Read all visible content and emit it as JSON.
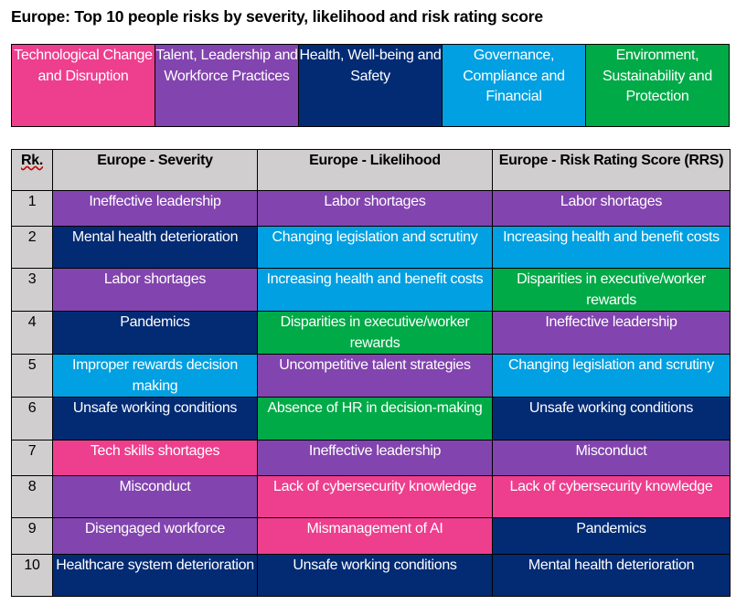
{
  "title": "Europe: Top 10 people risks by severity, likelihood and risk rating score",
  "colors": {
    "tech": "#ee3e8e",
    "talent": "#8244ae",
    "health": "#022b74",
    "gov": "#00a0e2",
    "env": "#00aa47"
  },
  "legend": [
    {
      "key": "tech",
      "label": "Technological Change and Disruption"
    },
    {
      "key": "talent",
      "label": "Talent, Leadership and Workforce Practices"
    },
    {
      "key": "health",
      "label": "Health, Well-being and Safety"
    },
    {
      "key": "gov",
      "label": "Governance, Compliance and Financial"
    },
    {
      "key": "env",
      "label": "Environment, Sustainability and Protection"
    }
  ],
  "headers": [
    "Rk.",
    "Europe - Severity",
    "Europe - Likelihood",
    "Europe - Risk Rating Score (RRS)"
  ],
  "rows": [
    {
      "rank": "1",
      "cells": [
        [
          "Ineffective leadership",
          "talent"
        ],
        [
          "Labor shortages",
          "talent"
        ],
        [
          "Labor shortages",
          "talent"
        ]
      ]
    },
    {
      "rank": "2",
      "cells": [
        [
          "Mental health deterioration",
          "health"
        ],
        [
          "Changing legislation and scrutiny",
          "gov"
        ],
        [
          "Increasing health and benefit costs",
          "gov"
        ]
      ]
    },
    {
      "rank": "3",
      "cells": [
        [
          "Labor shortages",
          "talent"
        ],
        [
          "Increasing health and benefit costs",
          "gov"
        ],
        [
          "Disparities in executive/worker rewards",
          "env"
        ]
      ]
    },
    {
      "rank": "4",
      "cells": [
        [
          "Pandemics",
          "health"
        ],
        [
          "Disparities in executive/worker rewards",
          "env"
        ],
        [
          "Ineffective leadership",
          "talent"
        ]
      ]
    },
    {
      "rank": "5",
      "cells": [
        [
          "Improper rewards decision making",
          "gov"
        ],
        [
          "Uncompetitive talent strategies",
          "talent"
        ],
        [
          "Changing legislation and scrutiny",
          "gov"
        ]
      ]
    },
    {
      "rank": "6",
      "cells": [
        [
          "Unsafe working conditions",
          "health"
        ],
        [
          "Absence of HR in decision-making",
          "env"
        ],
        [
          "Unsafe working conditions",
          "health"
        ]
      ]
    },
    {
      "rank": "7",
      "cells": [
        [
          "Tech skills shortages",
          "tech"
        ],
        [
          "Ineffective leadership",
          "talent"
        ],
        [
          "Misconduct",
          "talent"
        ]
      ]
    },
    {
      "rank": "8",
      "cells": [
        [
          "Misconduct",
          "talent"
        ],
        [
          "Lack of cybersecurity knowledge",
          "tech"
        ],
        [
          "Lack of cybersecurity knowledge",
          "tech"
        ]
      ]
    },
    {
      "rank": "9",
      "cells": [
        [
          "Disengaged workforce",
          "talent"
        ],
        [
          "Mismanagement of AI",
          "tech"
        ],
        [
          "Pandemics",
          "health"
        ]
      ]
    },
    {
      "rank": "10",
      "cells": [
        [
          "Healthcare system deterioration",
          "health"
        ],
        [
          "Unsafe working conditions",
          "health"
        ],
        [
          "Mental health deterioration",
          "health"
        ]
      ]
    }
  ]
}
